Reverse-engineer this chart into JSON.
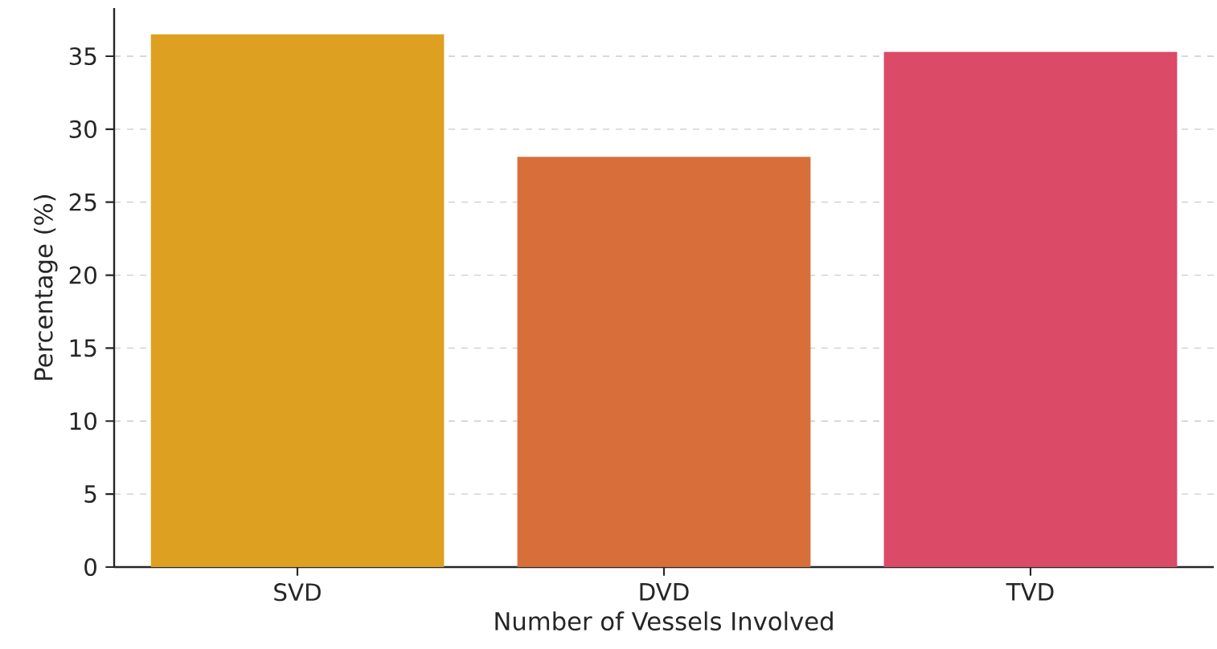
{
  "chart_data": {
    "type": "bar",
    "xlabel": "Number of Vessels Involved",
    "ylabel": "Percentage (%)",
    "categories": [
      "SVD",
      "DVD",
      "TVD"
    ],
    "values": [
      36.5,
      28.1,
      35.3
    ],
    "colors": [
      "#dda020",
      "#d86f3a",
      "#db4a67"
    ],
    "ylim": [
      0,
      38.3
    ],
    "yticks": [
      0,
      5,
      10,
      15,
      20,
      25,
      30,
      35
    ],
    "grid": "y"
  }
}
